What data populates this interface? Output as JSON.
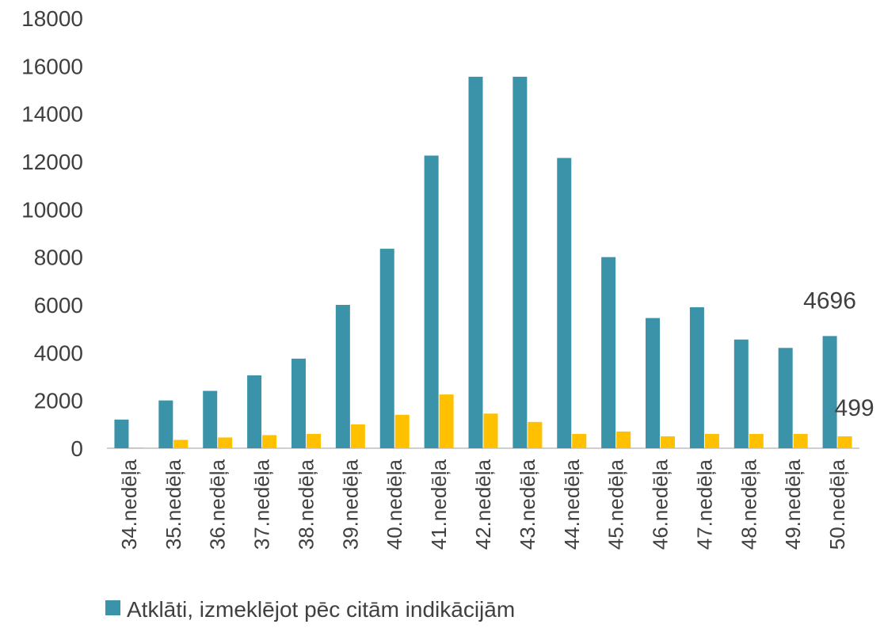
{
  "chart_data": {
    "type": "bar",
    "categories": [
      "34.nedēļa",
      "35.nedēļa",
      "36.nedēļa",
      "37.nedēļa",
      "38.nedēļa",
      "39.nedēļa",
      "40.nedēļa",
      "41.nedēļa",
      "42.nedēļa",
      "43.nedēļa",
      "44.nedēļa",
      "45.nedēļa",
      "46.nedēļa",
      "47.nedēļa",
      "48.nedēļa",
      "49.nedēļa",
      "50.nedēļa"
    ],
    "series": [
      {
        "name": "Atklāti, izmeklējot pēc citām indikācijām",
        "color": "#3a93a8",
        "values": [
          1200,
          2000,
          2400,
          3050,
          3750,
          6000,
          8350,
          12250,
          15550,
          15550,
          12150,
          8000,
          5450,
          5900,
          4550,
          4200,
          4696
        ]
      },
      {
        "color": "#ffc000",
        "values": [
          30,
          350,
          450,
          550,
          600,
          1000,
          1400,
          2250,
          1450,
          1100,
          600,
          700,
          500,
          600,
          600,
          600,
          499
        ]
      }
    ],
    "ylim": [
      0,
      18000
    ],
    "yticks": [
      0,
      2000,
      4000,
      6000,
      8000,
      10000,
      12000,
      14000,
      16000,
      18000
    ],
    "grid": false,
    "legend": "bottom-left"
  }
}
